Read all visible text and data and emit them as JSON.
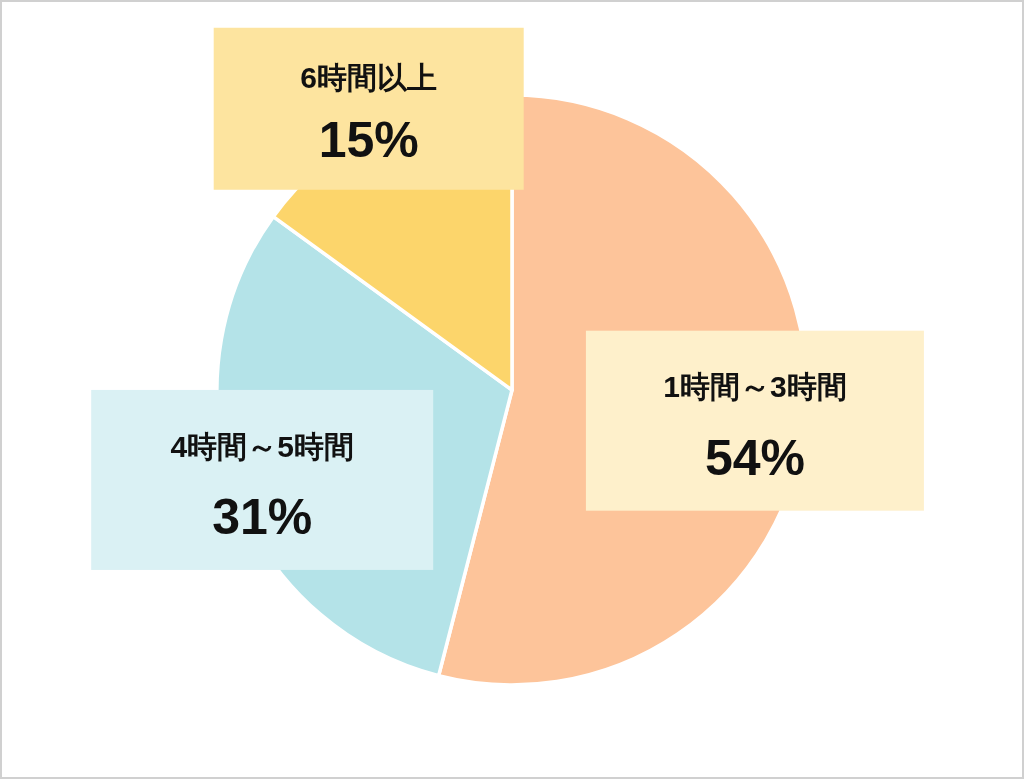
{
  "chart_data": {
    "type": "pie",
    "categories": [
      "1時間～3時間",
      "4時間～5時間",
      "6時間以上"
    ],
    "values": [
      54,
      31,
      15
    ],
    "colors": [
      "#fdc49a",
      "#b4e3e8",
      "#fcd56b"
    ],
    "value_labels": [
      "54%",
      "31%",
      "15%"
    ]
  }
}
